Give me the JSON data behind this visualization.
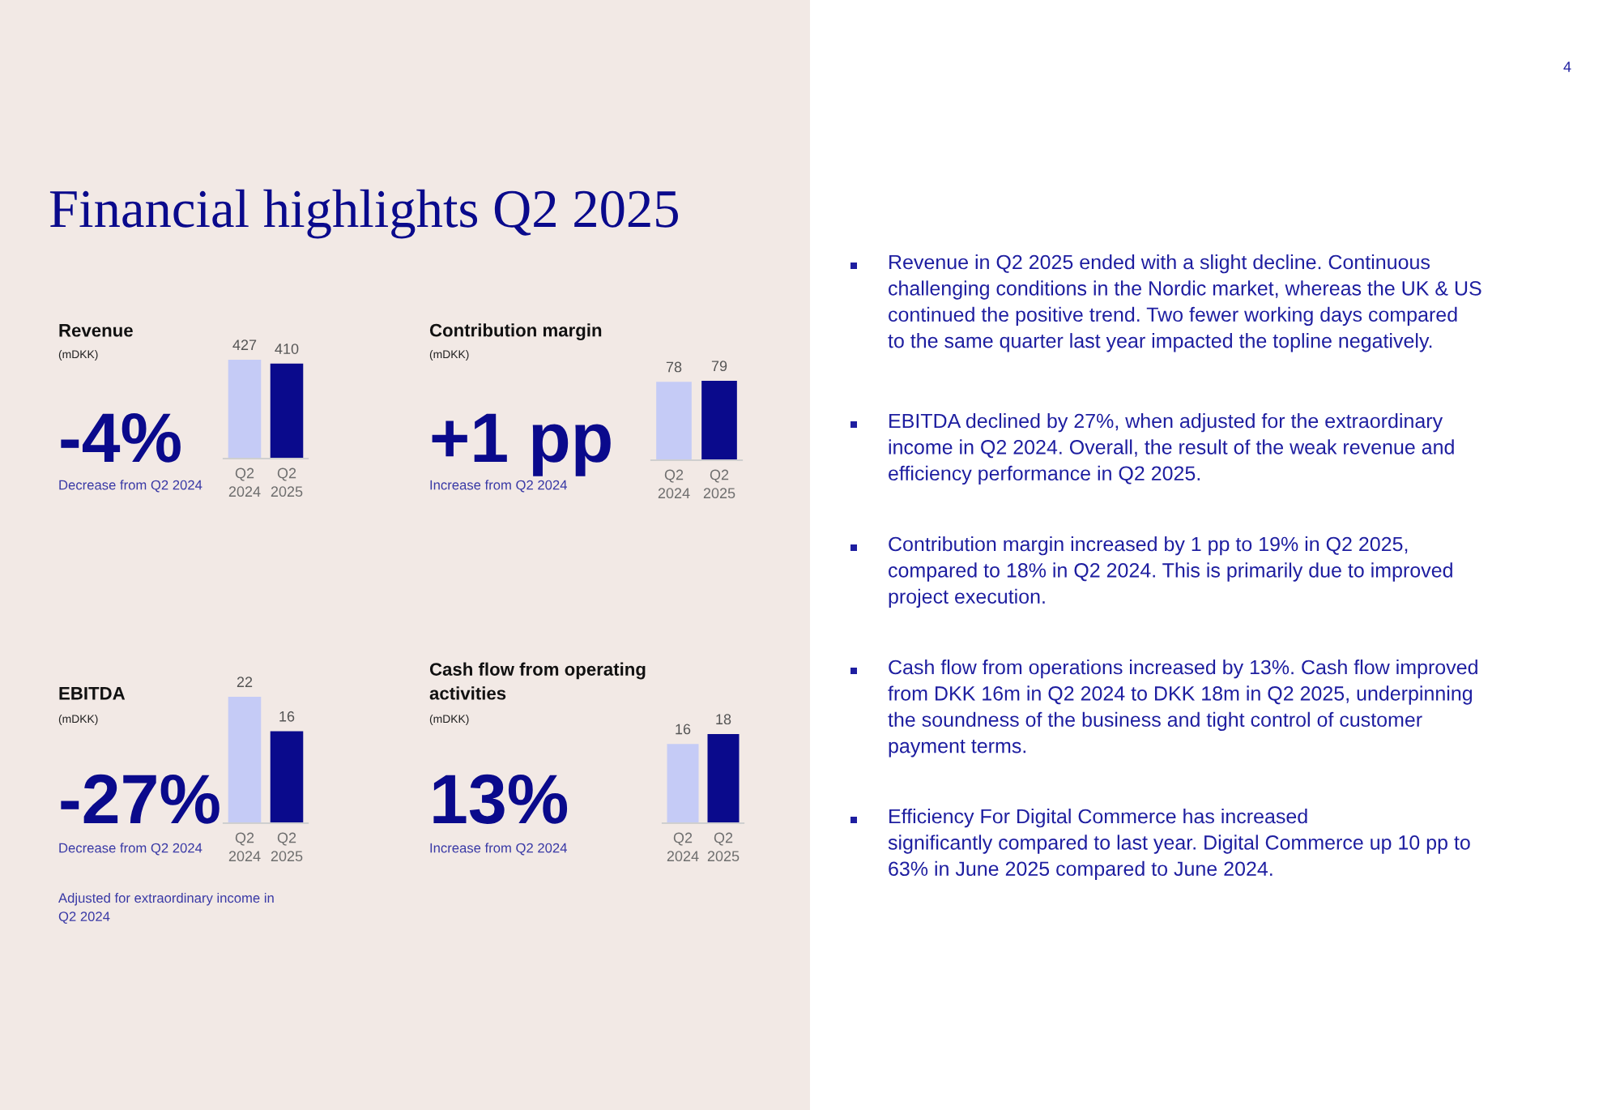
{
  "chart_data": [
    {
      "type": "other",
      "title": "Financial highlights Q2 2025",
      "annotations": [
        "4"
      ]
    },
    {
      "type": "bar",
      "title": "Revenue",
      "ylabel": "(mDKK)",
      "categories": [
        "Q2\n2024",
        "Q2\n2025"
      ],
      "values": [
        427,
        410
      ],
      "colors": [
        "#c5cbf6",
        "#0a0a8c"
      ],
      "data_labels": true,
      "annotations": [
        "-4%",
        "Decrease from Q2 2024"
      ]
    },
    {
      "type": "bar",
      "title": "Contribution margin",
      "ylabel": "(mDKK)",
      "categories": [
        "Q2\n2024",
        "Q2\n2025"
      ],
      "values": [
        78,
        79
      ],
      "colors": [
        "#c5cbf6",
        "#0a0a8c"
      ],
      "data_labels": true,
      "annotations": [
        "+1 pp",
        "Increase from Q2 2024"
      ]
    },
    {
      "type": "bar",
      "title": "EBITDA",
      "ylabel": "(mDKK)",
      "categories": [
        "Q2\n2024",
        "Q2\n2025"
      ],
      "values": [
        22,
        16
      ],
      "colors": [
        "#c5cbf6",
        "#0a0a8c"
      ],
      "data_labels": true,
      "annotations": [
        "-27%",
        "Decrease from Q2 2024",
        "Adjusted for extraordinary income in\nQ2 2024"
      ]
    },
    {
      "type": "bar",
      "title": "Cash flow from operating\nactivities",
      "ylabel": "(mDKK)",
      "categories": [
        "Q2\n2024",
        "Q2\n2025"
      ],
      "values": [
        16,
        18
      ],
      "colors": [
        "#c5cbf6",
        "#0a0a8c"
      ],
      "data_labels": true,
      "annotations": [
        "13%",
        "Increase from Q2 2024"
      ]
    },
    {
      "type": "other",
      "annotations": [
        "Revenue in Q2 2025 ended with a slight decline. Continuous\nchallenging conditions in the Nordic market, whereas the UK & US\ncontinued the positive trend. Two fewer working days compared\nto the same quarter last year impacted the topline negatively.",
        "EBITDA declined by 27%, when adjusted for the extraordinary\nincome in Q2 2024. Overall, the result of the weak revenue and\nefficiency performance in Q2 2025.",
        "Contribution margin increased by 1 pp to 19% in Q2 2025,\ncompared to 18% in Q2 2024. This is primarily due to improved\nproject execution.",
        "Cash flow from operations increased by 13%. Cash flow improved\nfrom DKK 16m in Q2 2024 to DKK 18m in Q2 2025, underpinning\nthe soundness of the business and tight control of customer\npayment terms.",
        "Efficiency For Digital Commerce has increased\nsignificantly compared to last year. Digital Commerce up 10 pp to\n63% in June 2025 compared to June 2024."
      ]
    }
  ]
}
